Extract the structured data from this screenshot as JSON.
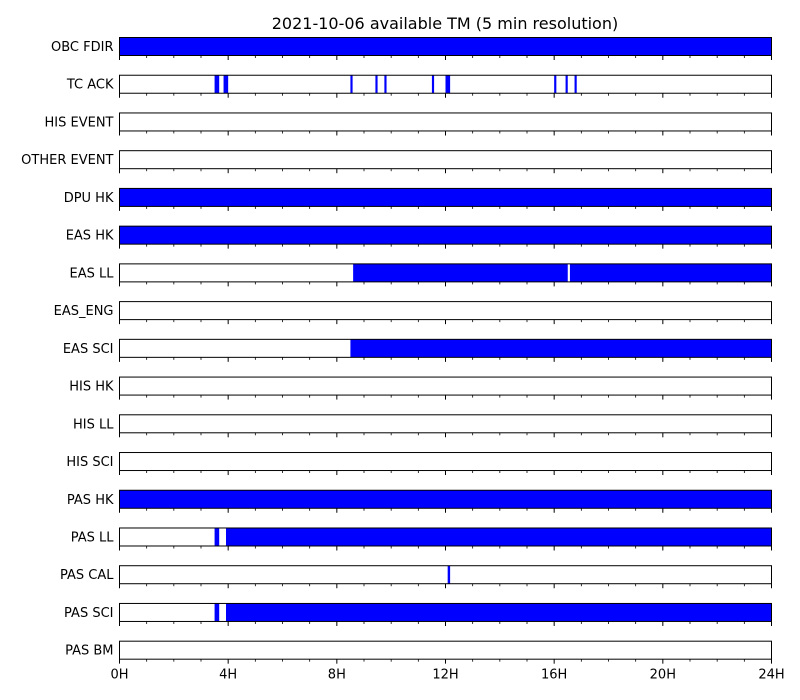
{
  "colors": {
    "fill": "#0000ff",
    "axis": "#000000",
    "background": "#ffffff"
  },
  "chart_data": {
    "type": "timeline",
    "title": "2021-10-06 available TM (5 min resolution)",
    "xlabel": "",
    "ylabel": "",
    "unit": "hours",
    "xlim": [
      0,
      24
    ],
    "x_ticks": [
      {
        "value": 0,
        "label": "0H"
      },
      {
        "value": 4,
        "label": "4H"
      },
      {
        "value": 8,
        "label": "8H"
      },
      {
        "value": 12,
        "label": "12H"
      },
      {
        "value": 16,
        "label": "16H"
      },
      {
        "value": 20,
        "label": "20H"
      },
      {
        "value": 24,
        "label": "24H"
      }
    ],
    "minor_tick_step": 1,
    "rows": [
      {
        "name": "OBC FDIR",
        "intervals": [
          [
            0,
            24
          ]
        ]
      },
      {
        "name": "TC ACK",
        "intervals": [
          [
            3.5,
            3.67
          ],
          [
            3.83,
            4.0
          ],
          [
            8.5,
            8.58
          ],
          [
            9.42,
            9.5
          ],
          [
            9.75,
            9.83
          ],
          [
            11.5,
            11.58
          ],
          [
            12.0,
            12.17
          ],
          [
            16.0,
            16.08
          ],
          [
            16.42,
            16.5
          ],
          [
            16.75,
            16.83
          ]
        ]
      },
      {
        "name": "HIS EVENT",
        "intervals": []
      },
      {
        "name": "OTHER EVENT",
        "intervals": []
      },
      {
        "name": "DPU HK",
        "intervals": [
          [
            0,
            24
          ]
        ]
      },
      {
        "name": "EAS HK",
        "intervals": [
          [
            0,
            24
          ]
        ]
      },
      {
        "name": "EAS LL",
        "intervals": [
          [
            8.6,
            16.5
          ],
          [
            16.58,
            24
          ]
        ]
      },
      {
        "name": "EAS_ENG",
        "intervals": []
      },
      {
        "name": "EAS SCI",
        "intervals": [
          [
            8.5,
            24
          ]
        ]
      },
      {
        "name": "HIS HK",
        "intervals": []
      },
      {
        "name": "HIS LL",
        "intervals": []
      },
      {
        "name": "HIS SCI",
        "intervals": []
      },
      {
        "name": "PAS HK",
        "intervals": [
          [
            0,
            24
          ]
        ]
      },
      {
        "name": "PAS LL",
        "intervals": [
          [
            3.5,
            3.67
          ],
          [
            3.92,
            24
          ]
        ]
      },
      {
        "name": "PAS CAL",
        "intervals": [
          [
            12.08,
            12.17
          ]
        ]
      },
      {
        "name": "PAS SCI",
        "intervals": [
          [
            3.5,
            3.67
          ],
          [
            3.92,
            24
          ]
        ]
      },
      {
        "name": "PAS BM",
        "intervals": []
      }
    ]
  }
}
